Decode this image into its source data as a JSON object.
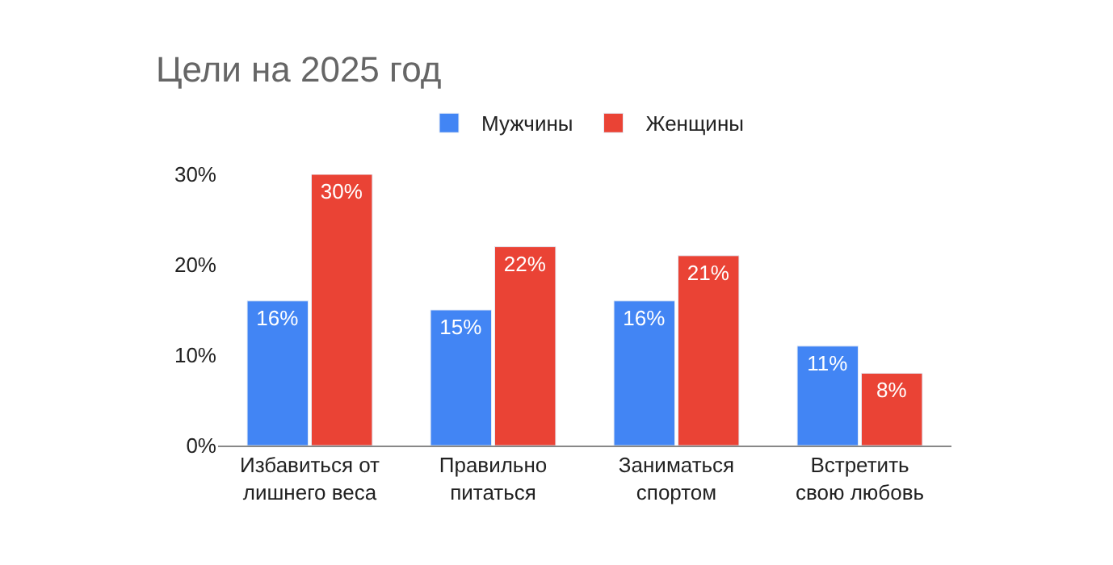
{
  "chart_data": {
    "type": "bar",
    "title": "Цели на 2025 год",
    "categories": [
      "Избавиться от\nлишнего веса",
      "Правильно\nпитаться",
      "Заниматься\nспортом",
      "Встретить\nсвою любовь"
    ],
    "series": [
      {
        "name": "Мужчины",
        "color": "#4285f4",
        "values": [
          16,
          15,
          16,
          11
        ],
        "value_labels": [
          "16%",
          "15%",
          "16%",
          "11%"
        ]
      },
      {
        "name": "Женщины",
        "color": "#ea4335",
        "values": [
          30,
          22,
          21,
          8
        ],
        "value_labels": [
          "30%",
          "22%",
          "21%",
          "8%"
        ]
      }
    ],
    "ylim": [
      0,
      30
    ],
    "yticks": [
      {
        "value": 0,
        "label": "0%"
      },
      {
        "value": 10,
        "label": "10%"
      },
      {
        "value": 20,
        "label": "20%"
      },
      {
        "value": 30,
        "label": "30%"
      }
    ],
    "legend": "top"
  }
}
